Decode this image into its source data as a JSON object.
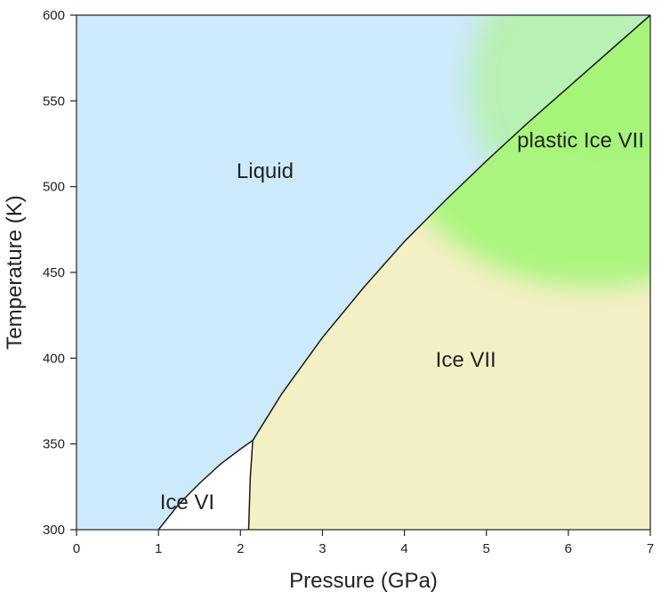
{
  "chart_data": {
    "type": "area",
    "subtype": "phase-diagram",
    "title": "",
    "xlabel": "Pressure (GPa)",
    "ylabel": "Temperature (K)",
    "xlim": [
      0,
      7
    ],
    "ylim": [
      300,
      600
    ],
    "xticks": [
      0,
      1,
      2,
      3,
      4,
      5,
      6,
      7
    ],
    "yticks": [
      300,
      350,
      400,
      450,
      500,
      550,
      600
    ],
    "grid": false,
    "colors": {
      "liquid": "#cdeafa",
      "ice_vi": "#ffffff",
      "ice_vii": "#f4f0c5",
      "plastic_ice_vii": "#a6f57a",
      "boundary": "#1a1a1a"
    },
    "regions": [
      {
        "name": "Liquid",
        "label_at": [
          2.3,
          505
        ]
      },
      {
        "name": "Ice VI",
        "label_at": [
          1.35,
          312
        ]
      },
      {
        "name": "Ice VII",
        "label_at": [
          4.75,
          395
        ]
      },
      {
        "name": "plastic Ice VII",
        "label_at": [
          6.15,
          523
        ]
      }
    ],
    "boundaries": [
      {
        "name": "liquid-ice VI melting curve",
        "x": [
          1.0,
          1.25,
          1.5,
          1.75,
          2.0,
          2.15
        ],
        "y": [
          300,
          315,
          327,
          338,
          347,
          352
        ]
      },
      {
        "name": "ice VI - ice VII boundary",
        "x": [
          2.1,
          2.12,
          2.15
        ],
        "y": [
          300,
          330,
          352
        ]
      },
      {
        "name": "liquid-ice VII melting curve",
        "x": [
          2.15,
          2.5,
          3.0,
          3.5,
          4.0,
          4.5,
          5.0,
          5.5,
          6.0,
          6.5,
          7.0
        ],
        "y": [
          352,
          379,
          412,
          441,
          468,
          492,
          515,
          537,
          558,
          579,
          600
        ]
      }
    ]
  }
}
